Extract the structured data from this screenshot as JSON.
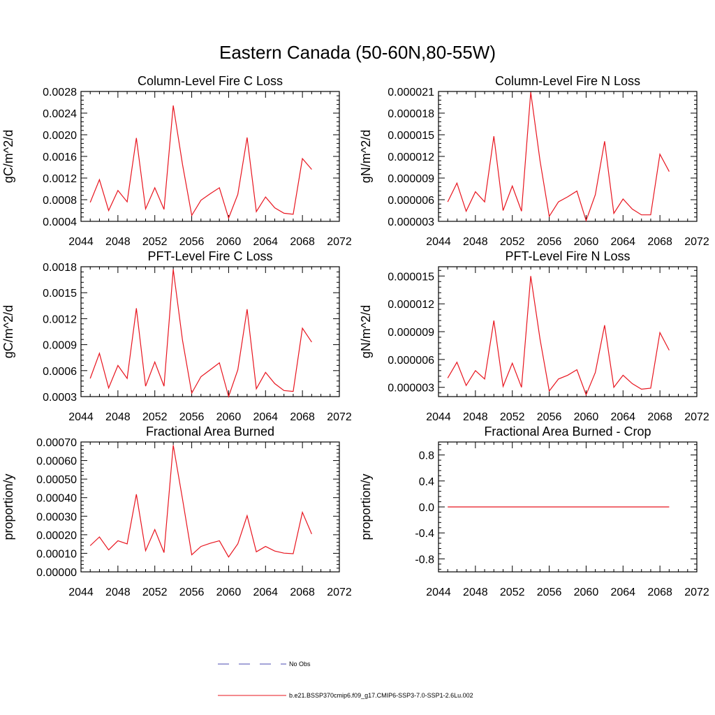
{
  "figure_title": "Eastern Canada (50-60N,80-55W)",
  "legend": [
    {
      "label": "No Obs",
      "color": "#4a4ab0",
      "dash": true
    },
    {
      "label": "b.e21.BSSP370cmip6.f09_g17.CMIP6-SSP3-7.0-SSP1-2.6Lu.002",
      "color": "#e8141e",
      "dash": false
    }
  ],
  "chart_data": [
    {
      "type": "line",
      "title": "Column-Level Fire C Loss",
      "ylabel": "gC/m^2/d",
      "xlim": [
        2044,
        2072
      ],
      "ylim": [
        0.0004,
        0.0028
      ],
      "xticks": [
        "2044",
        "2048",
        "2052",
        "2056",
        "2060",
        "2064",
        "2068",
        "2072"
      ],
      "yticks": [
        "0.0004",
        "0.0008",
        "0.0012",
        "0.0016",
        "0.0020",
        "0.0024",
        "0.0028"
      ],
      "series": [
        {
          "color": "#e8141e",
          "x": [
            2045,
            2046,
            2047,
            2048,
            2049,
            2050,
            2051,
            2052,
            2053,
            2054,
            2055,
            2056,
            2057,
            2058,
            2059,
            2060,
            2061,
            2062,
            2063,
            2064,
            2065,
            2066,
            2067,
            2068,
            2069
          ],
          "y": [
            0.00075,
            0.00117,
            0.0006,
            0.00097,
            0.00076,
            0.00194,
            0.00063,
            0.00102,
            0.00062,
            0.00254,
            0.00145,
            0.00051,
            0.00079,
            0.00091,
            0.00102,
            0.00046,
            0.0009,
            0.00195,
            0.00058,
            0.00085,
            0.00065,
            0.00055,
            0.00053,
            0.00156,
            0.00136
          ]
        }
      ]
    },
    {
      "type": "line",
      "title": "Column-Level Fire N Loss",
      "ylabel": "gN/m^2/d",
      "xlim": [
        2044,
        2072
      ],
      "ylim": [
        3e-06,
        2.1e-05
      ],
      "xticks": [
        "2044",
        "2048",
        "2052",
        "2056",
        "2060",
        "2064",
        "2068",
        "2072"
      ],
      "yticks": [
        "0.000003",
        "0.000006",
        "0.000009",
        "0.000012",
        "0.000015",
        "0.000018",
        "0.000021"
      ],
      "series": [
        {
          "color": "#e8141e",
          "x": [
            2045,
            2046,
            2047,
            2048,
            2049,
            2050,
            2051,
            2052,
            2053,
            2054,
            2055,
            2056,
            2057,
            2058,
            2059,
            2060,
            2061,
            2062,
            2063,
            2064,
            2065,
            2066,
            2067,
            2068,
            2069
          ],
          "y": [
            5.7e-06,
            8.3e-06,
            4.4e-06,
            7.1e-06,
            5.7e-06,
            1.48e-05,
            4.5e-06,
            7.9e-06,
            4.4e-06,
            2.09e-05,
            1.14e-05,
            3.7e-06,
            5.7e-06,
            6.4e-06,
            7.2e-06,
            3.1e-06,
            6.7e-06,
            1.41e-05,
            4.1e-06,
            6.1e-06,
            4.7e-06,
            3.9e-06,
            3.9e-06,
            1.23e-05,
            9.9e-06
          ]
        }
      ]
    },
    {
      "type": "line",
      "title": "PFT-Level Fire C Loss",
      "ylabel": "gC/m^2/d",
      "xlim": [
        2044,
        2072
      ],
      "ylim": [
        0.0003,
        0.0018
      ],
      "xticks": [
        "2044",
        "2048",
        "2052",
        "2056",
        "2060",
        "2064",
        "2068",
        "2072"
      ],
      "yticks": [
        "0.0003",
        "0.0006",
        "0.0009",
        "0.0012",
        "0.0015",
        "0.0018"
      ],
      "series": [
        {
          "color": "#e8141e",
          "x": [
            2045,
            2046,
            2047,
            2048,
            2049,
            2050,
            2051,
            2052,
            2053,
            2054,
            2055,
            2056,
            2057,
            2058,
            2059,
            2060,
            2061,
            2062,
            2063,
            2064,
            2065,
            2066,
            2067,
            2068,
            2069
          ],
          "y": [
            0.00051,
            0.0008,
            0.0004,
            0.00066,
            0.00051,
            0.00132,
            0.00042,
            0.0007,
            0.00042,
            0.00177,
            0.00095,
            0.00034,
            0.00053,
            0.00061,
            0.00069,
            0.0003,
            0.00061,
            0.00131,
            0.00039,
            0.00058,
            0.00045,
            0.00037,
            0.00036,
            0.00109,
            0.00093
          ]
        }
      ]
    },
    {
      "type": "line",
      "title": "PFT-Level Fire N Loss",
      "ylabel": "gN/m^2/d",
      "xlim": [
        2044,
        2072
      ],
      "ylim": [
        2e-06,
        1.6e-05
      ],
      "xticks": [
        "2044",
        "2048",
        "2052",
        "2056",
        "2060",
        "2064",
        "2068",
        "2072"
      ],
      "yticks": [
        "0.000003",
        "0.000006",
        "0.000009",
        "0.000012",
        "0.000015"
      ],
      "series": [
        {
          "color": "#e8141e",
          "x": [
            2045,
            2046,
            2047,
            2048,
            2049,
            2050,
            2051,
            2052,
            2053,
            2054,
            2055,
            2056,
            2057,
            2058,
            2059,
            2060,
            2061,
            2062,
            2063,
            2064,
            2065,
            2066,
            2067,
            2068,
            2069
          ],
          "y": [
            4e-06,
            5.7e-06,
            3.2e-06,
            4.8e-06,
            3.9e-06,
            1.02e-05,
            3.1e-06,
            5.6e-06,
            3e-06,
            1.5e-05,
            8.2e-06,
            2.6e-06,
            3.9e-06,
            4.3e-06,
            4.9e-06,
            2.2e-06,
            4.6e-06,
            9.7e-06,
            3e-06,
            4.3e-06,
            3.4e-06,
            2.8e-06,
            2.9e-06,
            8.9e-06,
            7e-06
          ]
        }
      ]
    },
    {
      "type": "line",
      "title": "Fractional Area Burned",
      "ylabel": "proportion/y",
      "xlim": [
        2044,
        2072
      ],
      "ylim": [
        0.0,
        0.0007
      ],
      "xticks": [
        "2044",
        "2048",
        "2052",
        "2056",
        "2060",
        "2064",
        "2068",
        "2072"
      ],
      "yticks": [
        "0.00000",
        "0.00010",
        "0.00020",
        "0.00030",
        "0.00040",
        "0.00050",
        "0.00060",
        "0.00070"
      ],
      "series": [
        {
          "color": "#e8141e",
          "x": [
            2045,
            2046,
            2047,
            2048,
            2049,
            2050,
            2051,
            2052,
            2053,
            2054,
            2055,
            2056,
            2057,
            2058,
            2059,
            2060,
            2061,
            2062,
            2063,
            2064,
            2065,
            2066,
            2067,
            2068,
            2069
          ],
          "y": [
            0.000141,
            0.000188,
            0.000118,
            0.000168,
            0.000151,
            0.000418,
            0.000114,
            0.000228,
            0.000104,
            0.000683,
            0.000392,
            9.2e-05,
            0.000137,
            0.000154,
            0.000168,
            8e-05,
            0.000151,
            0.000303,
            0.000108,
            0.000137,
            0.000112,
            0.000101,
            9.8e-05,
            0.000321,
            0.000204
          ]
        }
      ]
    },
    {
      "type": "line",
      "title": "Fractional Area Burned - Crop",
      "ylabel": "proportion/y",
      "xlim": [
        2044,
        2072
      ],
      "ylim": [
        -1.0,
        1.0
      ],
      "xticks": [
        "2044",
        "2048",
        "2052",
        "2056",
        "2060",
        "2064",
        "2068",
        "2072"
      ],
      "yticks": [
        "-0.8",
        "-0.4",
        "0.0",
        "0.4",
        "0.8"
      ],
      "series": [
        {
          "color": "#e8141e",
          "x": [
            2045,
            2069
          ],
          "y": [
            0.0,
            0.0
          ]
        }
      ]
    }
  ]
}
